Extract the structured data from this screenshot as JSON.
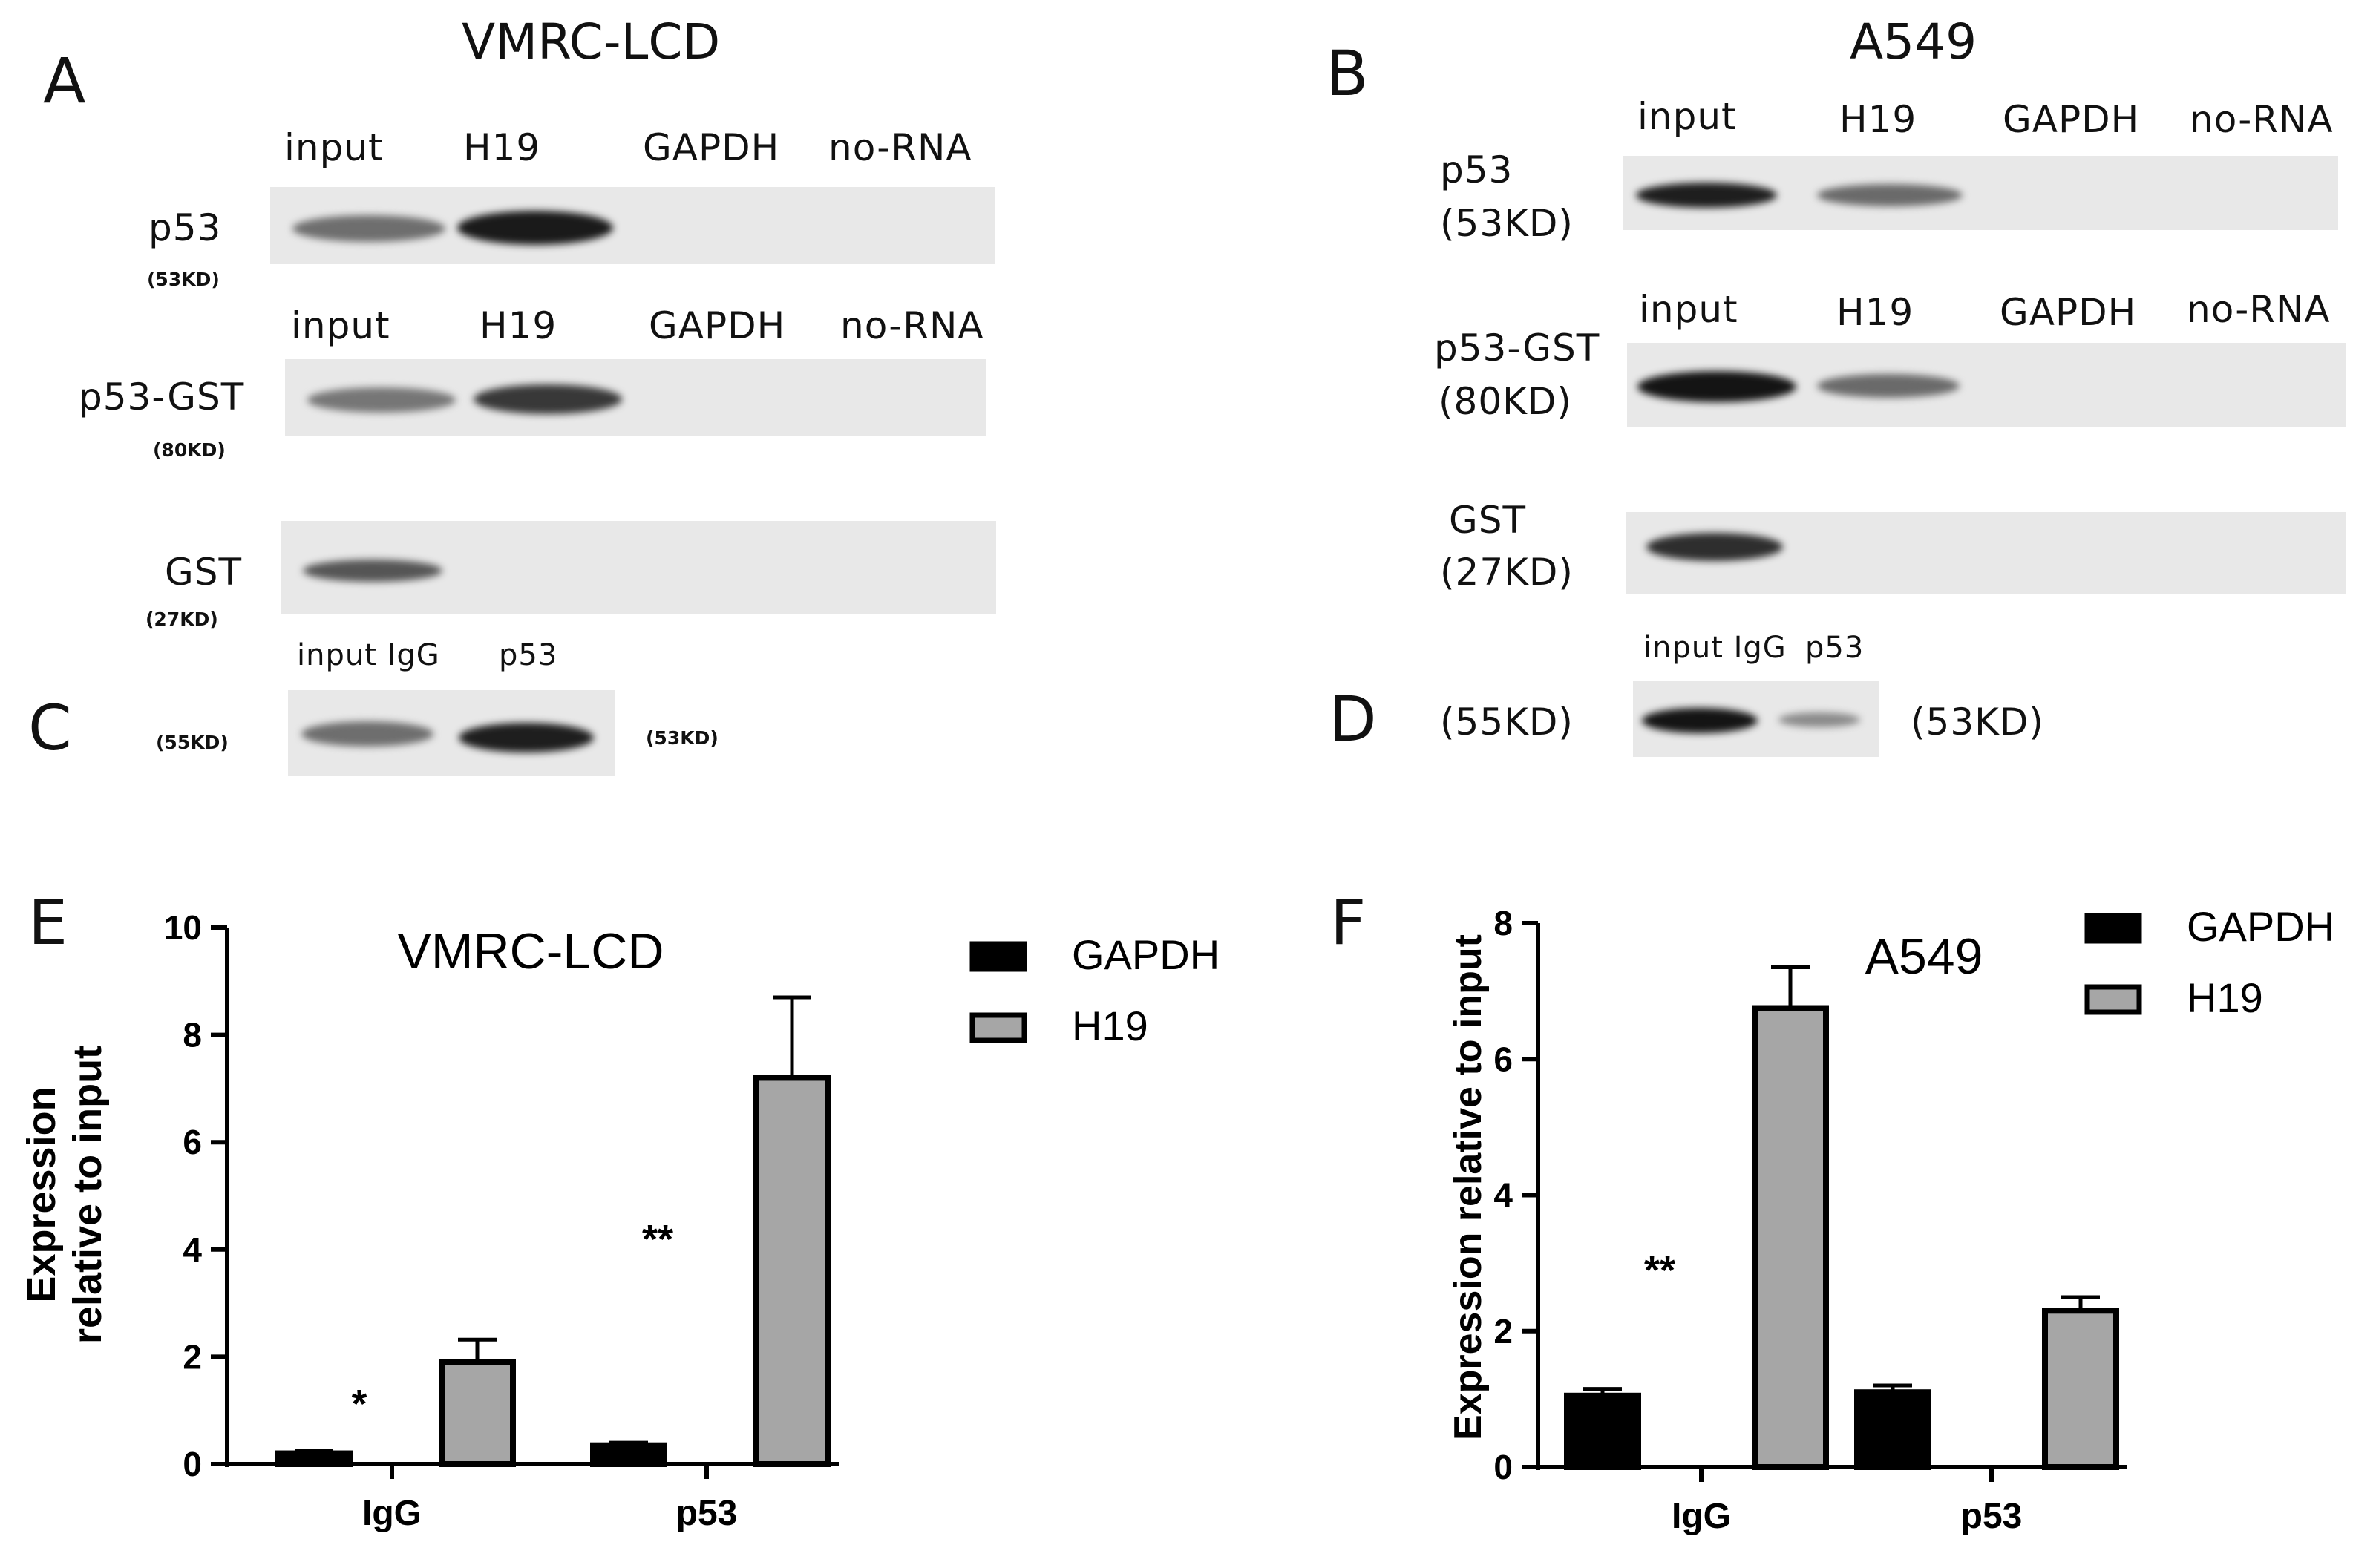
{
  "panels": {
    "A": {
      "label": "A",
      "title": "VMRC-LCD",
      "lanes_row1": [
        "input",
        "H19",
        "GAPDH",
        "no-RNA"
      ],
      "lanes_row2": [
        "input",
        "H19",
        "GAPDH",
        "no-RNA"
      ],
      "p53": {
        "name": "p53",
        "kd": "(53KD)"
      },
      "p53gst": {
        "name": "p53-GST",
        "kd": "(80KD)"
      },
      "gst": {
        "name": "GST",
        "kd": "(27KD)"
      }
    },
    "B": {
      "label": "B",
      "title": "A549",
      "lanes_row1": [
        "input",
        "H19",
        "GAPDH",
        "no-RNA"
      ],
      "lanes_row2": [
        "input",
        "H19",
        "GAPDH",
        "no-RNA"
      ],
      "p53": {
        "name": "p53",
        "kd": "(53KD)"
      },
      "p53gst": {
        "name": "p53-GST",
        "kd": "(80KD)"
      },
      "gst": {
        "name": "GST",
        "kd": "(27KD)"
      }
    },
    "C": {
      "label": "C",
      "lanes": "input IgG",
      "lane_p53": "p53",
      "kd_left": "(55KD)",
      "kd_right": "(53KD)"
    },
    "D": {
      "label": "D",
      "lanes": "input IgG",
      "lane_p53": "p53",
      "kd_left": "(55KD)",
      "kd_right": "(53KD)"
    },
    "E": {
      "label": "E"
    },
    "F": {
      "label": "F"
    }
  },
  "chart_data": [
    {
      "type": "bar",
      "title": "VMRC-LCD",
      "ylabel_line1": "Expression",
      "ylabel_line2": "relative to input",
      "categories": [
        "IgG",
        "p53"
      ],
      "series": [
        {
          "name": "GAPDH",
          "values": [
            0.2,
            0.35
          ],
          "errors": [
            0.05,
            0.05
          ],
          "color": "#000000"
        },
        {
          "name": "H19",
          "values": [
            1.9,
            7.2
          ],
          "errors": [
            0.42,
            1.5
          ],
          "color": "#a6a6a6"
        }
      ],
      "ylim": [
        0,
        10
      ],
      "yticks": [
        0,
        2,
        4,
        6,
        8,
        10
      ],
      "significance": [
        "*",
        "**"
      ],
      "legend": "right"
    },
    {
      "type": "bar",
      "title": "A549",
      "ylabel": "Expression relative to input",
      "categories": [
        "IgG",
        "p53"
      ],
      "series": [
        {
          "name": "GAPDH",
          "values": [
            1.05,
            1.1
          ],
          "errors": [
            0.1,
            0.1
          ],
          "color": "#000000"
        },
        {
          "name": "H19",
          "values": [
            6.75,
            2.3
          ],
          "errors": [
            0.6,
            0.2
          ],
          "color": "#a6a6a6"
        }
      ],
      "ylim": [
        0,
        8
      ],
      "yticks": [
        0,
        2,
        4,
        6,
        8
      ],
      "significance": [
        "**",
        ""
      ],
      "legend": "right"
    }
  ]
}
